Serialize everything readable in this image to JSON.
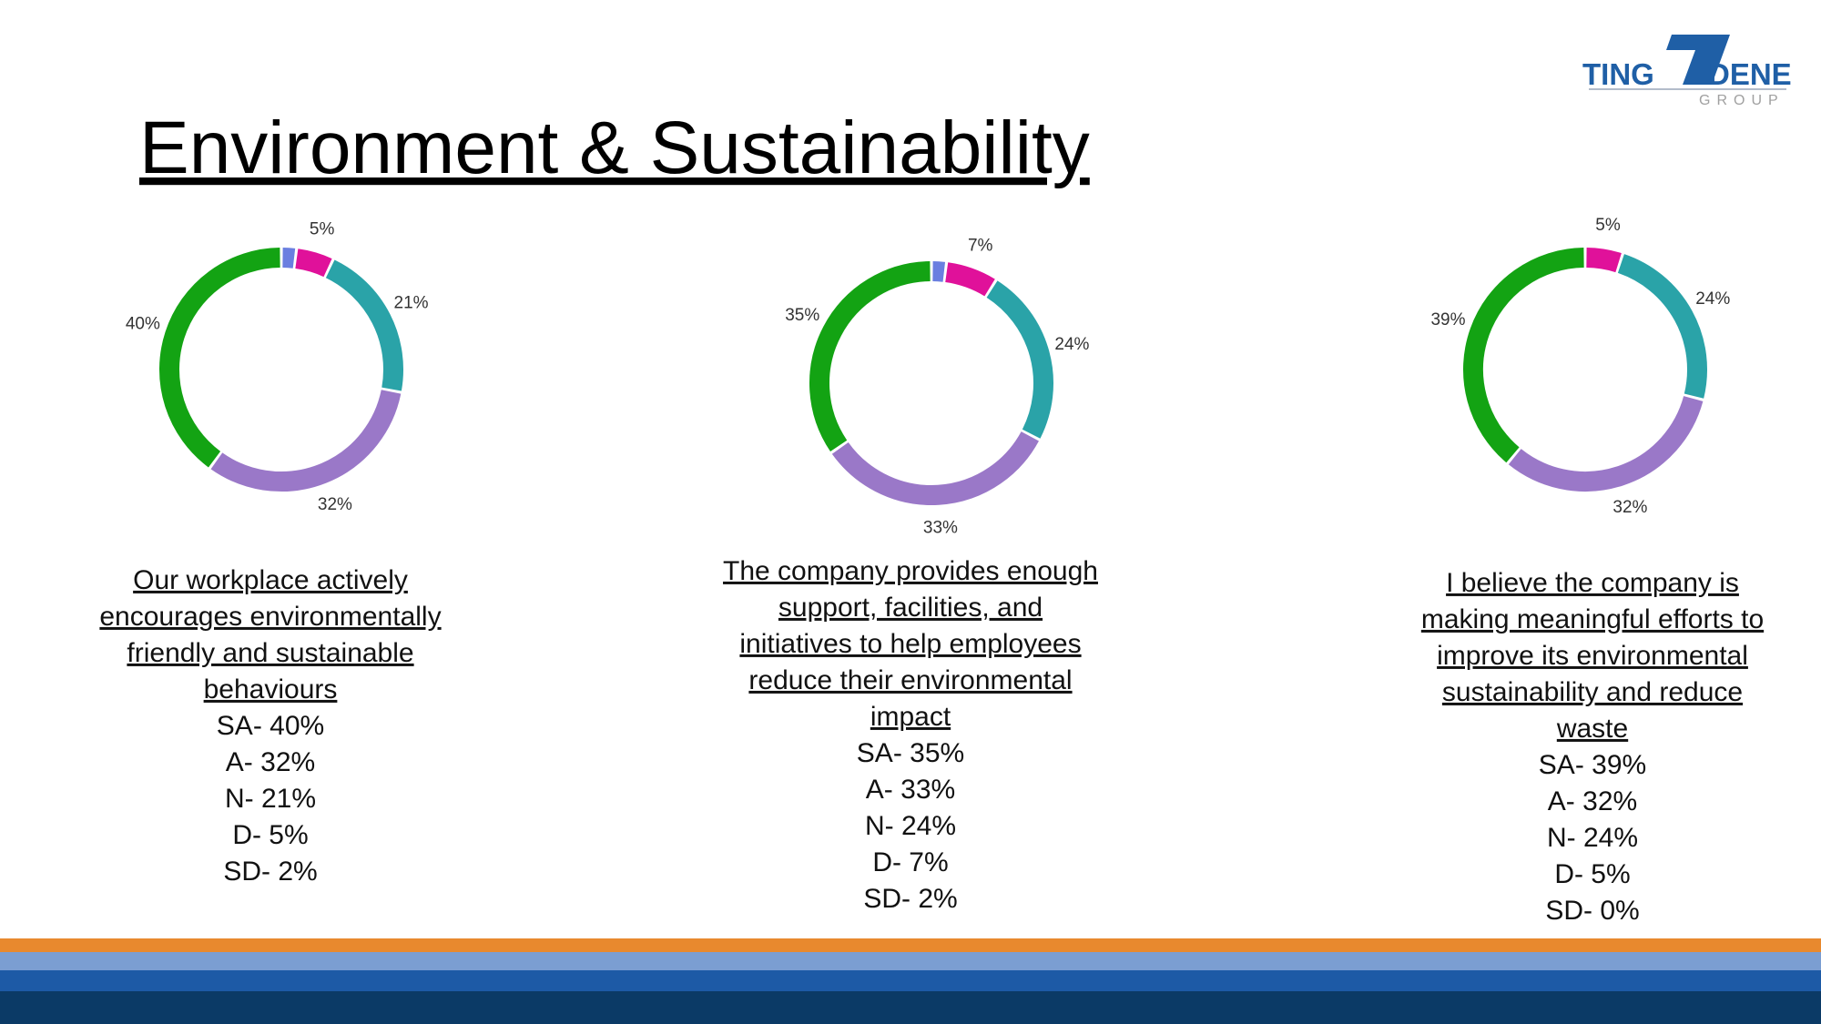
{
  "slide": {
    "title": "Environment & Sustainability",
    "logo": {
      "left": "TING",
      "right": "DENE",
      "sub": "GROUP"
    }
  },
  "chart_data": [
    {
      "type": "donut",
      "values": [
        2,
        5,
        21,
        32,
        40
      ],
      "value_labels": [
        null,
        "5%",
        "21%",
        "32%",
        "40%"
      ],
      "colors": [
        "#6a7fe0",
        "#e0119a",
        "#2aa3a8",
        "#9a78c8",
        "#13a313"
      ],
      "caption_lines": [
        "Our workplace actively",
        "encourages environmentally",
        "friendly and sustainable",
        "behaviours"
      ],
      "summary": [
        "SA- 40%",
        "A- 32%",
        "N- 21%",
        "D- 5%",
        "SD- 2%"
      ]
    },
    {
      "type": "donut",
      "values": [
        2,
        7,
        24,
        33,
        35
      ],
      "value_labels": [
        null,
        "7%",
        "24%",
        "33%",
        "35%"
      ],
      "colors": [
        "#6a7fe0",
        "#e0119a",
        "#2aa3a8",
        "#9a78c8",
        "#13a313"
      ],
      "caption_lines": [
        "The company provides enough",
        "support, facilities, and",
        "initiatives to help employees",
        "reduce their environmental",
        "impact"
      ],
      "summary": [
        "SA- 35%",
        "A- 33%",
        "N- 24%",
        "D- 7%",
        "SD- 2%"
      ]
    },
    {
      "type": "donut",
      "values": [
        0,
        5,
        24,
        32,
        39
      ],
      "value_labels": [
        null,
        "5%",
        "24%",
        "32%",
        "39%"
      ],
      "colors": [
        "#6a7fe0",
        "#e0119a",
        "#2aa3a8",
        "#9a78c8",
        "#13a313"
      ],
      "caption_lines": [
        "I believe the company is",
        "making meaningful efforts to",
        "improve its environmental",
        "sustainability and reduce",
        "waste"
      ],
      "summary": [
        "SA- 39%",
        "A- 32%",
        "N- 24%",
        "D- 5%",
        "SD- 0%"
      ]
    }
  ]
}
